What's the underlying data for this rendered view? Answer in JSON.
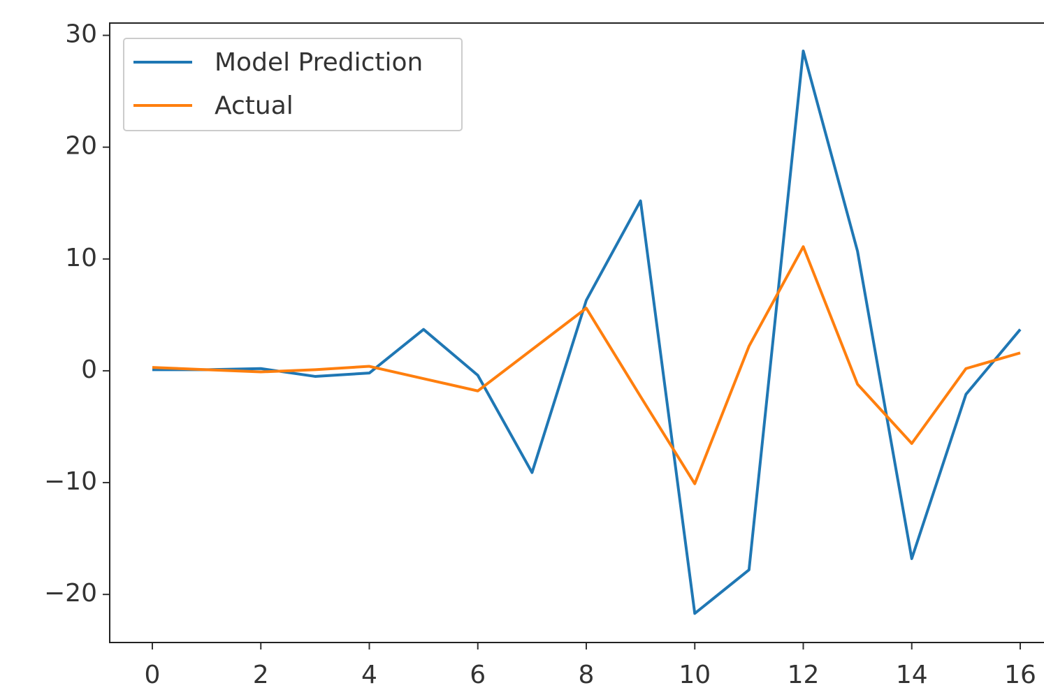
{
  "chart_data": {
    "type": "line",
    "x": [
      0,
      1,
      2,
      3,
      4,
      5,
      6,
      7,
      8,
      9,
      10,
      11,
      12,
      13,
      14,
      15,
      16
    ],
    "series": [
      {
        "name": "Model Prediction",
        "color": "#1f77b4",
        "values": [
          0.1,
          0.1,
          0.2,
          -0.5,
          -0.2,
          3.7,
          -0.4,
          -9.1,
          6.3,
          15.2,
          -21.7,
          -17.8,
          28.6,
          10.7,
          -16.8,
          -2.1,
          3.7
        ]
      },
      {
        "name": "Actual",
        "color": "#ff7f0e",
        "values": [
          0.3,
          0.1,
          -0.1,
          0.1,
          0.4,
          -0.7,
          -1.8,
          1.9,
          5.6,
          -2.3,
          -10.1,
          2.2,
          11.1,
          -1.2,
          -6.5,
          0.2,
          1.6
        ]
      }
    ],
    "xlim": [
      -0.8,
      16.8
    ],
    "ylim": [
      -24.3,
      31.1
    ],
    "xticks": [
      0,
      2,
      4,
      6,
      8,
      10,
      12,
      14,
      16
    ],
    "yticks": [
      {
        "value": -20,
        "label": "−20"
      },
      {
        "value": -10,
        "label": "−10"
      },
      0,
      10,
      20,
      30
    ],
    "legend": "upper left"
  }
}
